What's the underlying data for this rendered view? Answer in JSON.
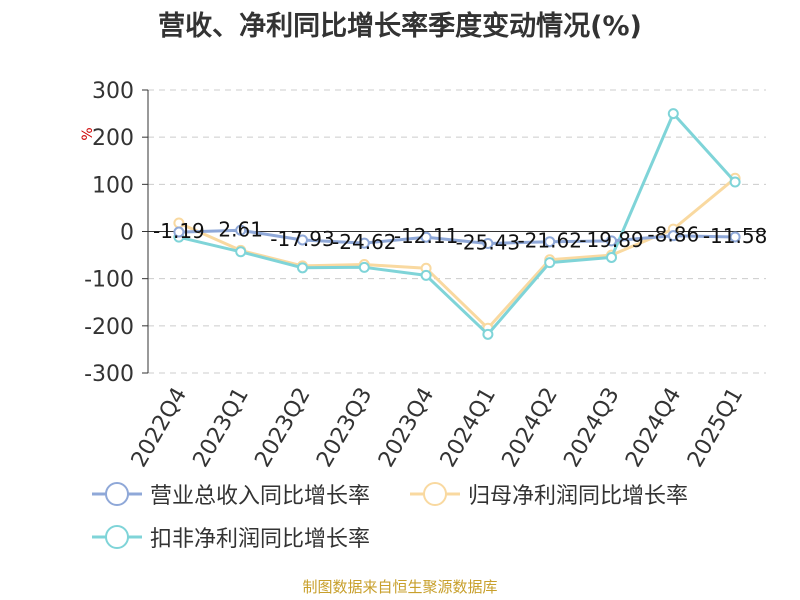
{
  "chart_data": {
    "type": "line",
    "title": "营收、净利同比增长率季度变动情况(%)",
    "ylabel": "%",
    "ylim": [
      -300,
      300
    ],
    "yticks": [
      300,
      200,
      100,
      0,
      -100,
      -200,
      -300
    ],
    "categories": [
      "2022Q4",
      "2023Q1",
      "2023Q2",
      "2023Q3",
      "2023Q4",
      "2024Q1",
      "2024Q2",
      "2024Q3",
      "2024Q4",
      "2025Q1"
    ],
    "series": [
      {
        "name": "营业总收入同比增长率",
        "color": "#8fa8d8",
        "values": [
          -1.19,
          2.61,
          -17.93,
          -24.62,
          -12.11,
          -25.43,
          -21.62,
          -19.89,
          -8.86,
          -11.58
        ],
        "labels": [
          "-1.19",
          "2.61",
          "-17.93",
          "-24.62",
          "-12.11",
          "-25.43",
          "-21.62",
          "-19.89",
          "-8.86",
          "-11.58"
        ]
      },
      {
        "name": "归母净利润同比增长率",
        "color": "#f9d9a0",
        "values": [
          18,
          -40,
          -73,
          -70,
          -78,
          -205,
          -60,
          -50,
          5,
          113
        ]
      },
      {
        "name": "扣非净利润同比增长率",
        "color": "#7fd4d8",
        "values": [
          -12,
          -43,
          -77,
          -76,
          -93,
          -218,
          -66,
          -55,
          250,
          105
        ]
      }
    ],
    "grid": true,
    "legend_position": "bottom"
  },
  "source": "制图数据来自恒生聚源数据库"
}
